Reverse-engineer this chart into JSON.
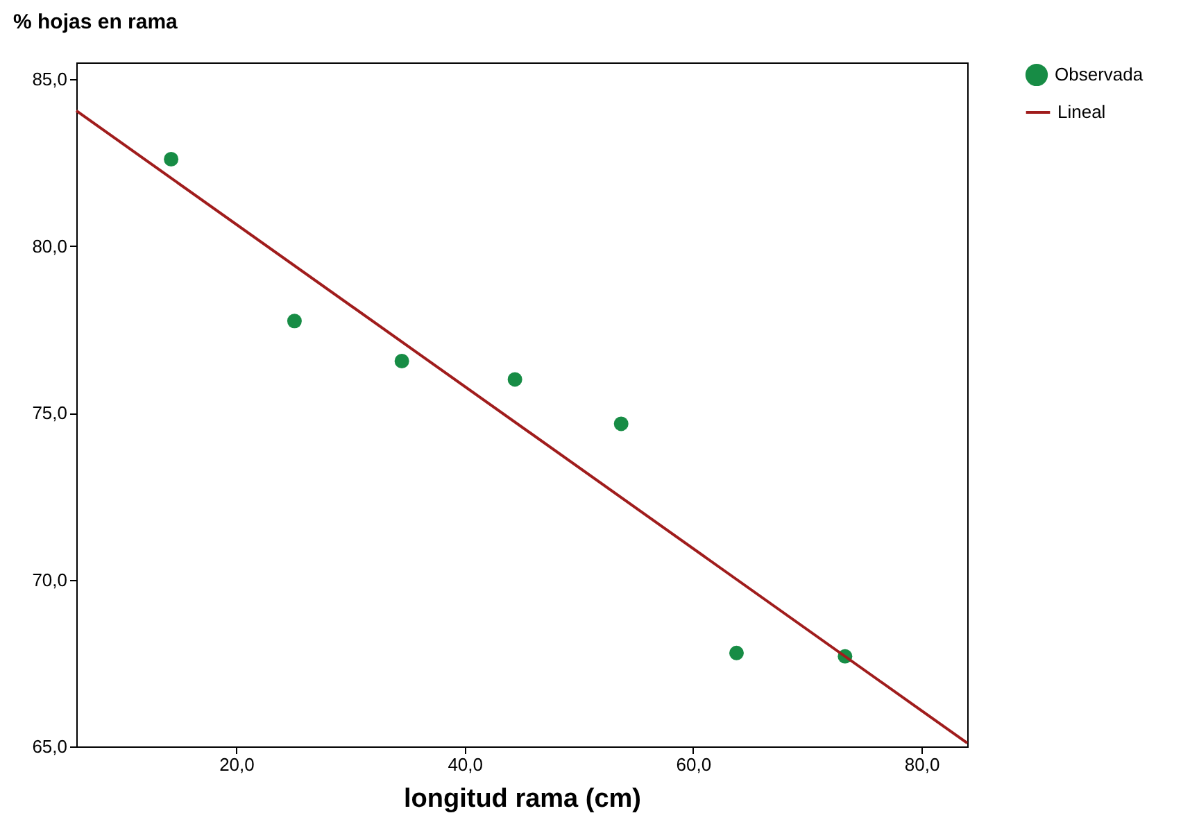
{
  "chart_data": {
    "type": "scatter",
    "xlabel": "longitud rama (cm)",
    "ylabel": "% hojas en rama",
    "xlim": [
      6,
      84
    ],
    "ylim": [
      65,
      85.5
    ],
    "xticks": [
      {
        "value": 20,
        "label": "20,0"
      },
      {
        "value": 40,
        "label": "40,0"
      },
      {
        "value": 60,
        "label": "60,0"
      },
      {
        "value": 80,
        "label": "80,0"
      }
    ],
    "yticks": [
      {
        "value": 65,
        "label": "65,0"
      },
      {
        "value": 70,
        "label": "70,0"
      },
      {
        "value": 75,
        "label": "75,0"
      },
      {
        "value": 80,
        "label": "80,0"
      },
      {
        "value": 85,
        "label": "85,0"
      }
    ],
    "grid": false,
    "legend": "top right",
    "series": [
      {
        "name": "Observada",
        "marker": "circle",
        "color": "#178c45",
        "x": [
          14.3,
          25.1,
          34.5,
          44.4,
          53.7,
          63.8,
          73.3
        ],
        "values": [
          82.6,
          77.75,
          76.55,
          76.0,
          74.67,
          67.8,
          67.7
        ]
      },
      {
        "name": "Lineal",
        "type": "line",
        "color": "#a01c1c",
        "line_style": "solid",
        "x": [
          6,
          84
        ],
        "values": [
          84.05,
          65.1
        ]
      }
    ]
  }
}
